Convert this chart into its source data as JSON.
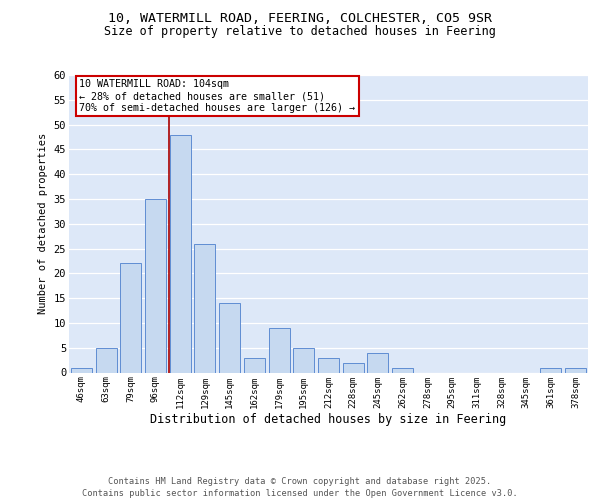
{
  "title_line1": "10, WATERMILL ROAD, FEERING, COLCHESTER, CO5 9SR",
  "title_line2": "Size of property relative to detached houses in Feering",
  "xlabel": "Distribution of detached houses by size in Feering",
  "ylabel": "Number of detached properties",
  "categories": [
    "46sqm",
    "63sqm",
    "79sqm",
    "96sqm",
    "112sqm",
    "129sqm",
    "145sqm",
    "162sqm",
    "179sqm",
    "195sqm",
    "212sqm",
    "228sqm",
    "245sqm",
    "262sqm",
    "278sqm",
    "295sqm",
    "311sqm",
    "328sqm",
    "345sqm",
    "361sqm",
    "378sqm"
  ],
  "values": [
    1,
    5,
    22,
    35,
    48,
    26,
    14,
    3,
    9,
    5,
    3,
    2,
    4,
    1,
    0,
    0,
    0,
    0,
    0,
    1,
    1
  ],
  "bar_color": "#c6d9f0",
  "bar_edge_color": "#5f8dd3",
  "bg_color": "#dde8f8",
  "grid_color": "#ffffff",
  "red_line_x": 3.53,
  "annotation_text": "10 WATERMILL ROAD: 104sqm\n← 28% of detached houses are smaller (51)\n70% of semi-detached houses are larger (126) →",
  "annotation_box_facecolor": "#ffffff",
  "annotation_box_edgecolor": "#cc0000",
  "footer": "Contains HM Land Registry data © Crown copyright and database right 2025.\nContains public sector information licensed under the Open Government Licence v3.0.",
  "ylim": [
    0,
    60
  ],
  "yticks": [
    0,
    5,
    10,
    15,
    20,
    25,
    30,
    35,
    40,
    45,
    50,
    55,
    60
  ]
}
